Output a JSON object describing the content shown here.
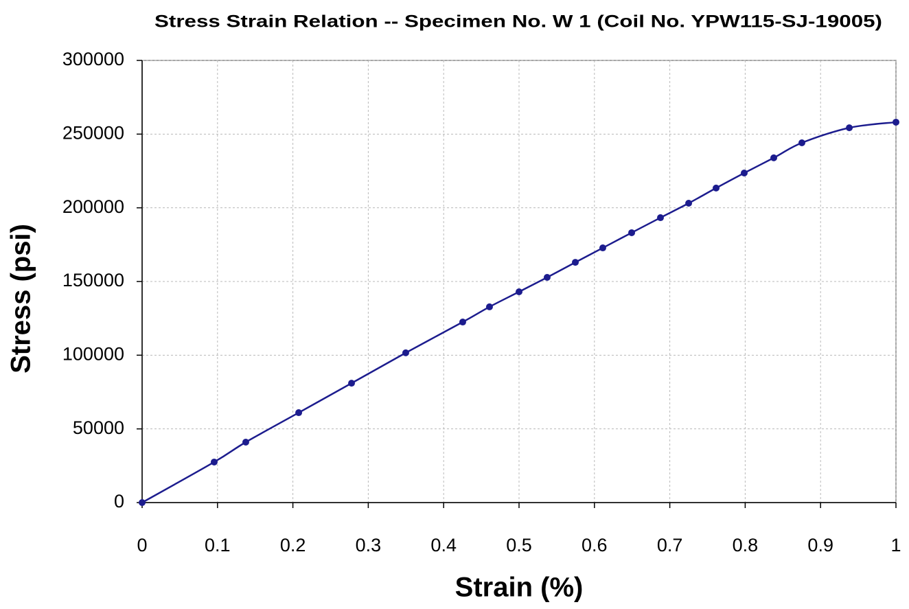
{
  "chart_data": {
    "type": "line",
    "title": "Stress Strain Relation -- Specimen No. W 1 (Coil No. YPW115-SJ-19005)",
    "x_label": "Strain (%)",
    "y_label": "Stress (psi)",
    "x": [
      0,
      0.0956,
      0.1375,
      0.2077,
      0.2778,
      0.3497,
      0.4253,
      0.4608,
      0.5,
      0.5373,
      0.5747,
      0.6111,
      0.6494,
      0.6876,
      0.725,
      0.7614,
      0.7987,
      0.8379,
      0.8752,
      0.9381,
      1
    ],
    "values": [
      0,
      27500,
      41000,
      61000,
      81000,
      101600,
      122500,
      132800,
      143000,
      152800,
      163000,
      172800,
      183100,
      193300,
      203100,
      213400,
      223600,
      233900,
      244100,
      254300,
      258100
    ],
    "color": "#1c1c8e",
    "xlim": [
      0,
      1
    ],
    "xticks": [
      0,
      0.1,
      0.2,
      0.3,
      0.4,
      0.5,
      0.6,
      0.7,
      0.8,
      0.9,
      1
    ],
    "ylim": [
      0,
      300000
    ],
    "yticks": [
      0,
      50000,
      100000,
      150000,
      200000,
      250000,
      300000
    ],
    "grid": true
  }
}
